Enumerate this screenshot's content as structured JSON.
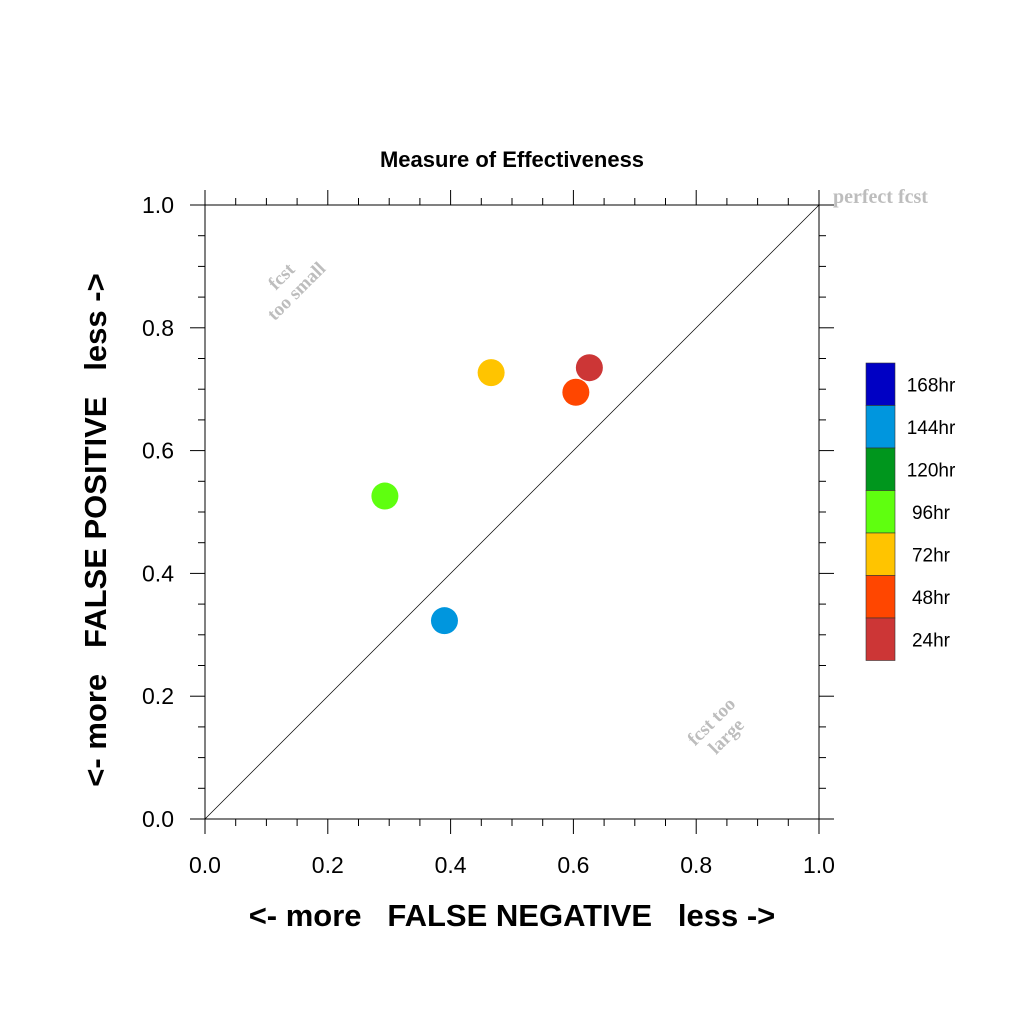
{
  "chart_data": {
    "type": "scatter",
    "title": "Measure of Effectiveness",
    "xlabel": "<- more   FALSE NEGATIVE   less ->",
    "ylabel": "<- more   FALSE POSITIVE   less ->",
    "xlim": [
      0,
      1
    ],
    "ylim": [
      0,
      1
    ],
    "x_ticks": [
      "0.0",
      "0.2",
      "0.4",
      "0.6",
      "0.8",
      "1.0"
    ],
    "y_ticks": [
      "0.0",
      "0.2",
      "0.4",
      "0.6",
      "0.8",
      "1.0"
    ],
    "grid": false,
    "diagonal_reference": true,
    "annotations": {
      "perfect": "perfect fcst",
      "too_small_line1": "fcst",
      "too_small_line2": "too small",
      "too_large_line1": "fcst too",
      "too_large_line2": "large"
    },
    "legend_position": "right",
    "series": [
      {
        "name": "168hr",
        "color": "#0000c4",
        "points": []
      },
      {
        "name": "144hr",
        "color": "#0096de",
        "points": [
          [
            0.39,
            0.323
          ]
        ]
      },
      {
        "name": "120hr",
        "color": "#00961d",
        "points": []
      },
      {
        "name": "96hr",
        "color": "#5fff0f",
        "points": [
          [
            0.293,
            0.526
          ]
        ]
      },
      {
        "name": "72hr",
        "color": "#ffc400",
        "points": [
          [
            0.466,
            0.727
          ]
        ]
      },
      {
        "name": "48hr",
        "color": "#ff4600",
        "points": [
          [
            0.604,
            0.695
          ]
        ]
      },
      {
        "name": "24hr",
        "color": "#cc3636",
        "points": [
          [
            0.626,
            0.735
          ]
        ]
      }
    ]
  }
}
